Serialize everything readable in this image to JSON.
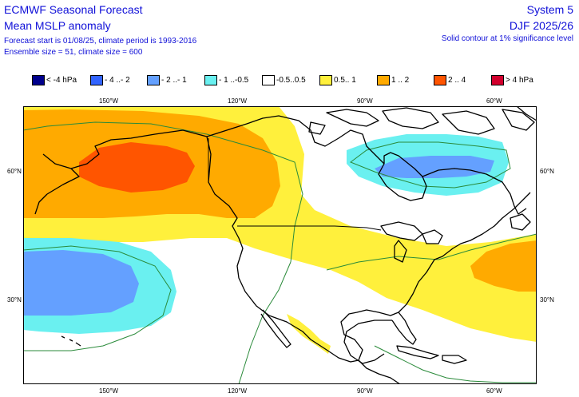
{
  "header": {
    "title_left_1": "ECMWF Seasonal Forecast",
    "title_left_2": "Mean MSLP anomaly",
    "meta_1": "Forecast start is 01/08/25, climate period is 1993-2016",
    "meta_2": "Ensemble size = 51, climate size = 600",
    "title_right_1": "System 5",
    "title_right_2": "DJF 2025/26",
    "meta_right": "Solid contour at 1% significance level"
  },
  "legend": [
    {
      "label": "< -4 hPa",
      "color": "#00008c"
    },
    {
      "label": "- 4 ..- 2",
      "color": "#3264ff"
    },
    {
      "label": "- 2 ..- 1",
      "color": "#64a0ff"
    },
    {
      "label": "- 1 ..-0.5",
      "color": "#6af0f0"
    },
    {
      "label": "-0.5..0.5",
      "color": "#ffffff"
    },
    {
      "label": "0.5.. 1",
      "color": "#fff03c"
    },
    {
      "label": "1 .. 2",
      "color": "#ffaa00"
    },
    {
      "label": "2 .. 4",
      "color": "#ff5500"
    },
    {
      "label": "> 4 hPa",
      "color": "#d2002d"
    }
  ],
  "axes": {
    "lon_labels": [
      "150°W",
      "120°W",
      "90°W",
      "60°W"
    ],
    "lat_labels": [
      "60°N",
      "30°N"
    ]
  },
  "colors": {
    "coastline": "#000000",
    "significance_contour": "#2a8a3a",
    "title_text": "#1010d8"
  }
}
